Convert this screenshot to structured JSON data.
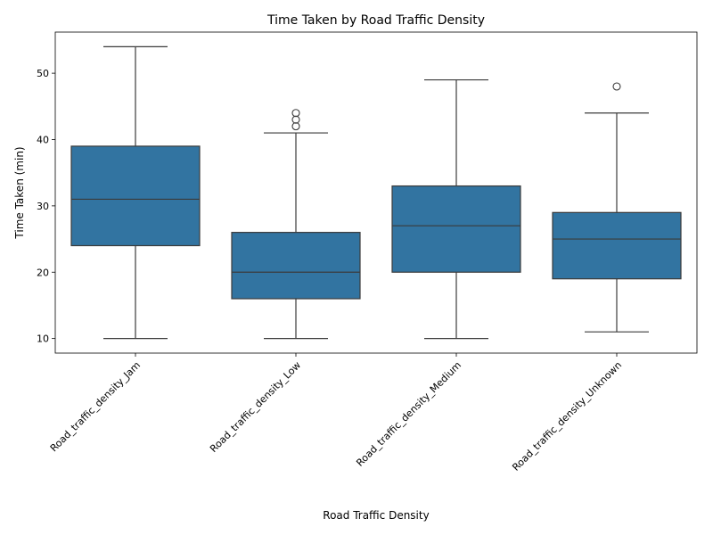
{
  "chart_data": {
    "type": "box",
    "title": "Time Taken by Road Traffic Density",
    "xlabel": "Road Traffic Density",
    "ylabel": "Time Taken (min)",
    "ylim": [
      7.8,
      56.2
    ],
    "yticks": [
      10,
      20,
      30,
      40,
      50
    ],
    "grid": false,
    "box_color": "#3274a1",
    "line_color": "#3b3b3b",
    "categories": [
      "Road_traffic_density_Jam",
      "Road_traffic_density_Low",
      "Road_traffic_density_Medium",
      "Road_traffic_density_Unknown"
    ],
    "boxes": [
      {
        "min": 10,
        "q1": 24,
        "median": 31,
        "q3": 39,
        "max": 54,
        "outliers": []
      },
      {
        "min": 10,
        "q1": 16,
        "median": 20,
        "q3": 26,
        "max": 41,
        "outliers": [
          42,
          43,
          44
        ]
      },
      {
        "min": 10,
        "q1": 20,
        "median": 27,
        "q3": 33,
        "max": 49,
        "outliers": []
      },
      {
        "min": 11,
        "q1": 19,
        "median": 25,
        "q3": 29,
        "max": 44,
        "outliers": [
          48
        ]
      }
    ]
  }
}
